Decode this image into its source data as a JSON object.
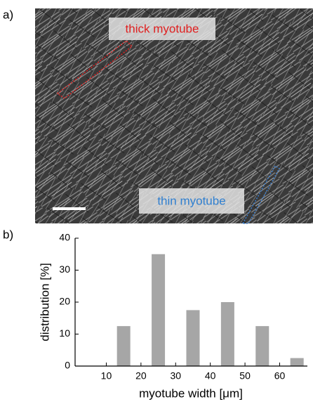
{
  "panel_a": {
    "label": "a)",
    "annotations": [
      "thick myotube",
      "thin myotube"
    ]
  },
  "panel_b": {
    "label": "b)"
  },
  "chart_data": {
    "type": "bar",
    "x": [
      15,
      25,
      35,
      45,
      55,
      65
    ],
    "values": [
      12.5,
      35,
      17.5,
      20,
      12.5,
      2.5
    ],
    "color": "#a6a6a6",
    "xlim": [
      1,
      68
    ],
    "xticks": [
      10,
      20,
      30,
      40,
      50,
      60
    ],
    "ylim": [
      0,
      40
    ],
    "yticks": [
      0,
      10,
      20,
      30,
      40
    ],
    "xlabel": "myotube width [μm]",
    "ylabel": "distribution [%]",
    "grid": false
  }
}
